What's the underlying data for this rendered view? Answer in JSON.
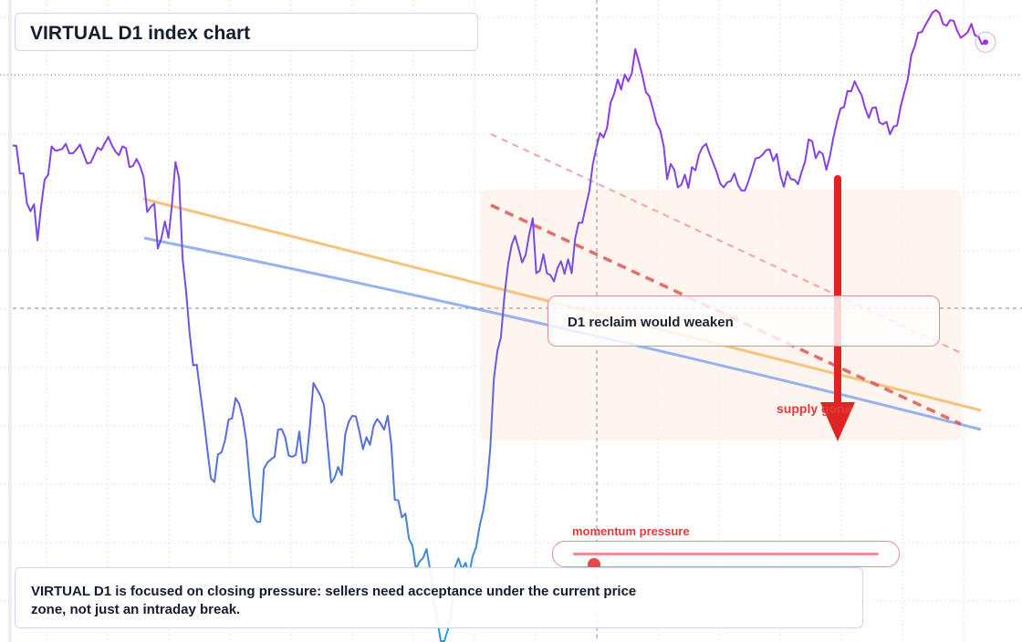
{
  "header": {
    "title": "VIRTUAL D1 index chart"
  },
  "annotations": {
    "reclaim_label": "D1 reclaim would weaken",
    "supply_label": "supply gone",
    "momentum_label": "momentum pressure"
  },
  "momentum": {
    "level": 0.07
  },
  "caption": {
    "text": "VIRTUAL D1 is focused on closing pressure: sellers need acceptance under the current price zone, not just an intraday break."
  },
  "colors": {
    "series_purple": "#9b30e8",
    "series_mid": "#6c56df",
    "series_blue": "#2f9bd7",
    "trend_orange": "#f7c27a",
    "trend_blue": "#96b2f0",
    "channel_red": "#e05555",
    "arrow_red": "#e02424",
    "zone_fill": "#fdf1ea",
    "grid": "#dfe3ea"
  },
  "chart_data": {
    "type": "line",
    "title": "VIRTUAL D1 index chart",
    "xlabel": "",
    "ylabel": "",
    "ylim": [
      0,
      100
    ],
    "grid": true,
    "series": [
      {
        "values": [
          78.5,
          78.5,
          74.1,
          74.1,
          69.4,
          68.1,
          69.2,
          63.5,
          68.8,
          73.1,
          73.9,
          78.4,
          77.7,
          77.8,
          78.0,
          78.8,
          77.3,
          77.3,
          77.9,
          78.7,
          77.2,
          75.7,
          75.8,
          77.0,
          78.2,
          77.8,
          78.9,
          79.9,
          78.6,
          77.6,
          77.0,
          78.4,
          78.1,
          75.1,
          75.3,
          76.4,
          75.3,
          73.5,
          68.0,
          68.8,
          69.3,
          62.2,
          63.8,
          66.5,
          63.9,
          69.1,
          75.9,
          73.4,
          60.6,
          55.5,
          48.8,
          43.7,
          43.8,
          39.5,
          35.2,
          30.4,
          25.8,
          25.2,
          29.6,
          29.9,
          31.8,
          35.1,
          35.3,
          38.5,
          37.6,
          35.4,
          31.9,
          25.4,
          19.8,
          18.9,
          18.9,
          27.3,
          28.3,
          28.8,
          29.2,
          33.5,
          33.6,
          32.3,
          29.4,
          29.2,
          29.5,
          33.2,
          28.2,
          28.4,
          34.1,
          40.9,
          39.9,
          38.9,
          37.4,
          31.1,
          25.1,
          25.9,
          27.6,
          26.3,
          32.8,
          34.8,
          35.7,
          35.6,
          33.2,
          30.4,
          32.3,
          31.1,
          34.1,
          35.2,
          34.5,
          33.5,
          35.7,
          31.2,
          22.4,
          22.3,
          19.6,
          20.2,
          16.2,
          15.1,
          11.4,
          12.6,
          13.2,
          14.6,
          11.2,
          6.1,
          3.5,
          0.0,
          0.0,
          1.8,
          4.5,
          11.6,
          13.1,
          11.4,
          12.4,
          10.6,
          13.4,
          14.9,
          18.3,
          20.7,
          24.2,
          30.6,
          41.5,
          46.0,
          48.1,
          54.7,
          59.6,
          62.7,
          64.2,
          62.2,
          60.0,
          61.2,
          64.4,
          67.0,
          58.3,
          58.7,
          61.3,
          58.3,
          58.0,
          57.0,
          59.1,
          60.2,
          58.2,
          60.5,
          58.3,
          63.8,
          66.3,
          66.3,
          68.9,
          71.3,
          75.6,
          78.2,
          80.5,
          79.8,
          81.3,
          85.3,
          86.7,
          89.0,
          87.4,
          89.8,
          88.7,
          90.0,
          93.8,
          91.8,
          89.6,
          87.0,
          86.3,
          84.3,
          82.1,
          81.0,
          78.5,
          73.2,
          75.6,
          74.7,
          71.9,
          72.3,
          73.9,
          71.8,
          75.1,
          74.6,
          77.1,
          78.3,
          78.8,
          77.2,
          75.8,
          74.3,
          72.5,
          71.9,
          72.7,
          72.9,
          74.1,
          72.3,
          71.4,
          71.4,
          72.9,
          74.7,
          76.5,
          76.6,
          77.1,
          77.8,
          77.9,
          76.1,
          77.2,
          73.8,
          72.0,
          74.4,
          73.2,
          73.1,
          72.4,
          74.3,
          76.0,
          79.5,
          79.2,
          76.5,
          77.6,
          77.2,
          74.7,
          76.8,
          79.8,
          82.3,
          84.4,
          84.6,
          87.2,
          87.1,
          88.7,
          87.5,
          86.5,
          84.4,
          82.9,
          84.5,
          84.6,
          82.2,
          81.9,
          82.3,
          80.3,
          81.5,
          81.7,
          84.7,
          86.8,
          88.9,
          92.8,
          94.3,
          96.4,
          96.5,
          97.6,
          98.6,
          99.6,
          100.0,
          99.5,
          97.8,
          97.5,
          98.4,
          98.3,
          96.7,
          95.6,
          96.0,
          96.5,
          97.8,
          96.0,
          95.8,
          94.6,
          94.9
        ]
      }
    ]
  }
}
